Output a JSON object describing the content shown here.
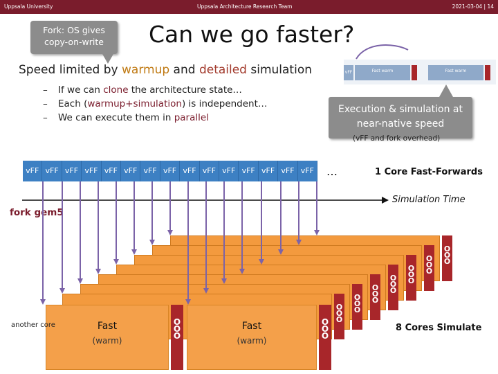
{
  "header": {
    "left": "Uppsala University",
    "center": "Uppsala Architecture Research Team",
    "right": "2021-03-04 | 14"
  },
  "title": "Can we go faster?",
  "callout_fork": "Fork: OS gives copy-on-write",
  "subtitle": {
    "pre": "Speed limited by ",
    "warmup": "warmup",
    "mid": " and ",
    "detailed": "detailed",
    "post": " simulation"
  },
  "bullets": [
    {
      "dash": "–",
      "text_a": "If we can ",
      "accent": "clone",
      "text_b": " the architecture state…"
    },
    {
      "dash": "–",
      "text_a": "Each (",
      "accent": "warmup+simulation",
      "text_b": ") is independent…"
    },
    {
      "dash": "–",
      "text_a": "We can execute them in ",
      "accent": "parallel",
      "text_b": ""
    }
  ],
  "callout_exec": "Execution & simulation at near-native speed",
  "overhead": "(vFF and fork overhead)",
  "thumbnail": {
    "blocks": [
      "vFF",
      "Fast warm",
      "Fast warm"
    ]
  },
  "vff_cells": [
    "vFF",
    "vFF",
    "vFF",
    "vFF",
    "vFF",
    "vFF",
    "vFF",
    "vFF",
    "vFF",
    "vFF",
    "vFF",
    "vFF",
    "vFF",
    "vFF",
    "vFF"
  ],
  "ellipsis": "…",
  "ff_label": "1 Core Fast-Forwards",
  "simtime": "Simulation Time",
  "fork_label": "fork gem5",
  "other_core": "another core",
  "fast_label": "Fast",
  "warm_label": "(warm)",
  "ooo_label": "O O O",
  "cores_label": "8 Cores Simulate",
  "colors": {
    "header": "#7a1c2c",
    "vff": "#3d80c3",
    "sim": "#f39a3e",
    "ooo": "#a8262a",
    "arrow": "#7b63a8"
  }
}
